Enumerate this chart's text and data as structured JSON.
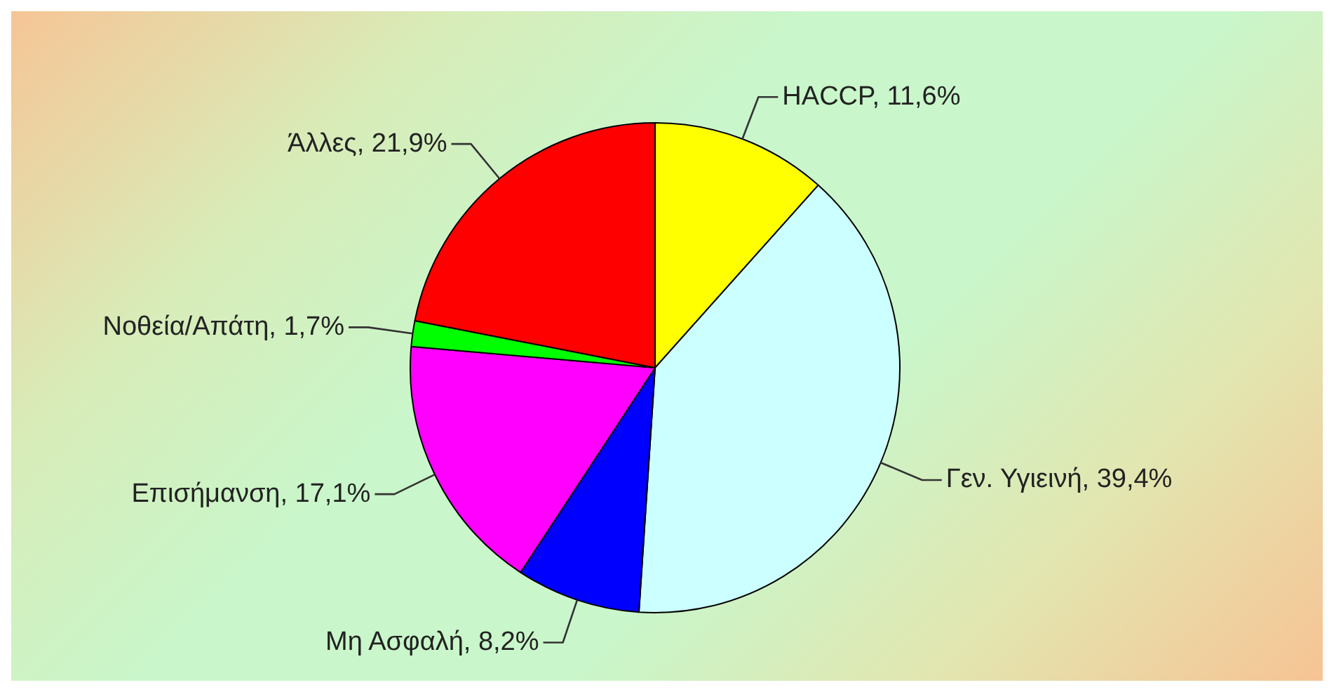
{
  "chart_data": {
    "type": "pie",
    "categories": [
      "HACCP",
      "Γεν. Υγιεινή",
      "Μη Ασφαλή",
      "Επισήμανση",
      "Νοθεία/Απάτη",
      "Άλλες"
    ],
    "values": [
      11.6,
      39.4,
      8.2,
      17.1,
      1.7,
      21.9
    ],
    "colors": [
      "#ffff00",
      "#ccffff",
      "#0000ff",
      "#ff00ff",
      "#00ff00",
      "#ff0000"
    ],
    "value_labels": [
      "11,6%",
      "39,4%",
      "8,2%",
      "17,1%",
      "1,7%",
      "21,9%"
    ]
  }
}
